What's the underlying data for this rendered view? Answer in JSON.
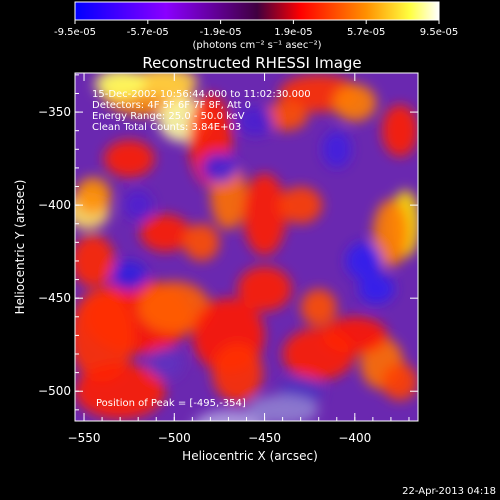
{
  "colorbar": {
    "tick_labels": [
      "-9.5e-05",
      "-5.7e-05",
      "-1.9e-05",
      "1.9e-05",
      "5.7e-05",
      "9.5e-05"
    ],
    "unit_label": "(photons cm⁻² s⁻¹ asec⁻²)",
    "range": [
      -9.5e-05,
      9.5e-05
    ],
    "colormap": [
      "#1a1aff",
      "#8000ff",
      "#ffffff",
      "#ff2000",
      "#ff8000",
      "#ffff60",
      "#ffffff"
    ]
  },
  "chart_data": {
    "type": "heatmap",
    "title": "Reconstructed RHESSI Image",
    "xlabel": "Heliocentric X (arcsec)",
    "ylabel": "Heliocentric Y (arcsec)",
    "xlim": [
      -555,
      -365
    ],
    "ylim": [
      -516,
      -329
    ],
    "x_ticks": [
      -550,
      -500,
      -450,
      -400
    ],
    "y_ticks": [
      -350,
      -400,
      -450,
      -500
    ],
    "x_tick_labels": [
      "−550",
      "−500",
      "−450",
      "−400"
    ],
    "y_tick_labels": [
      "−350",
      "−400",
      "−450",
      "−500"
    ],
    "annotations": [
      "15-Dec-2002 10:56:44.000 to 11:02:30.000",
      "Detectors: 4F 5F 6F 7F 8F, Att 0",
      "Energy Range: 25.0 - 50.0 keV",
      "Clean    Total Counts: 3.84E+03"
    ],
    "peak_label": "Position of Peak = [-495,-354]",
    "peak_position": [
      -495,
      -354
    ],
    "footer_date": "22-Apr-2013 04:18"
  }
}
